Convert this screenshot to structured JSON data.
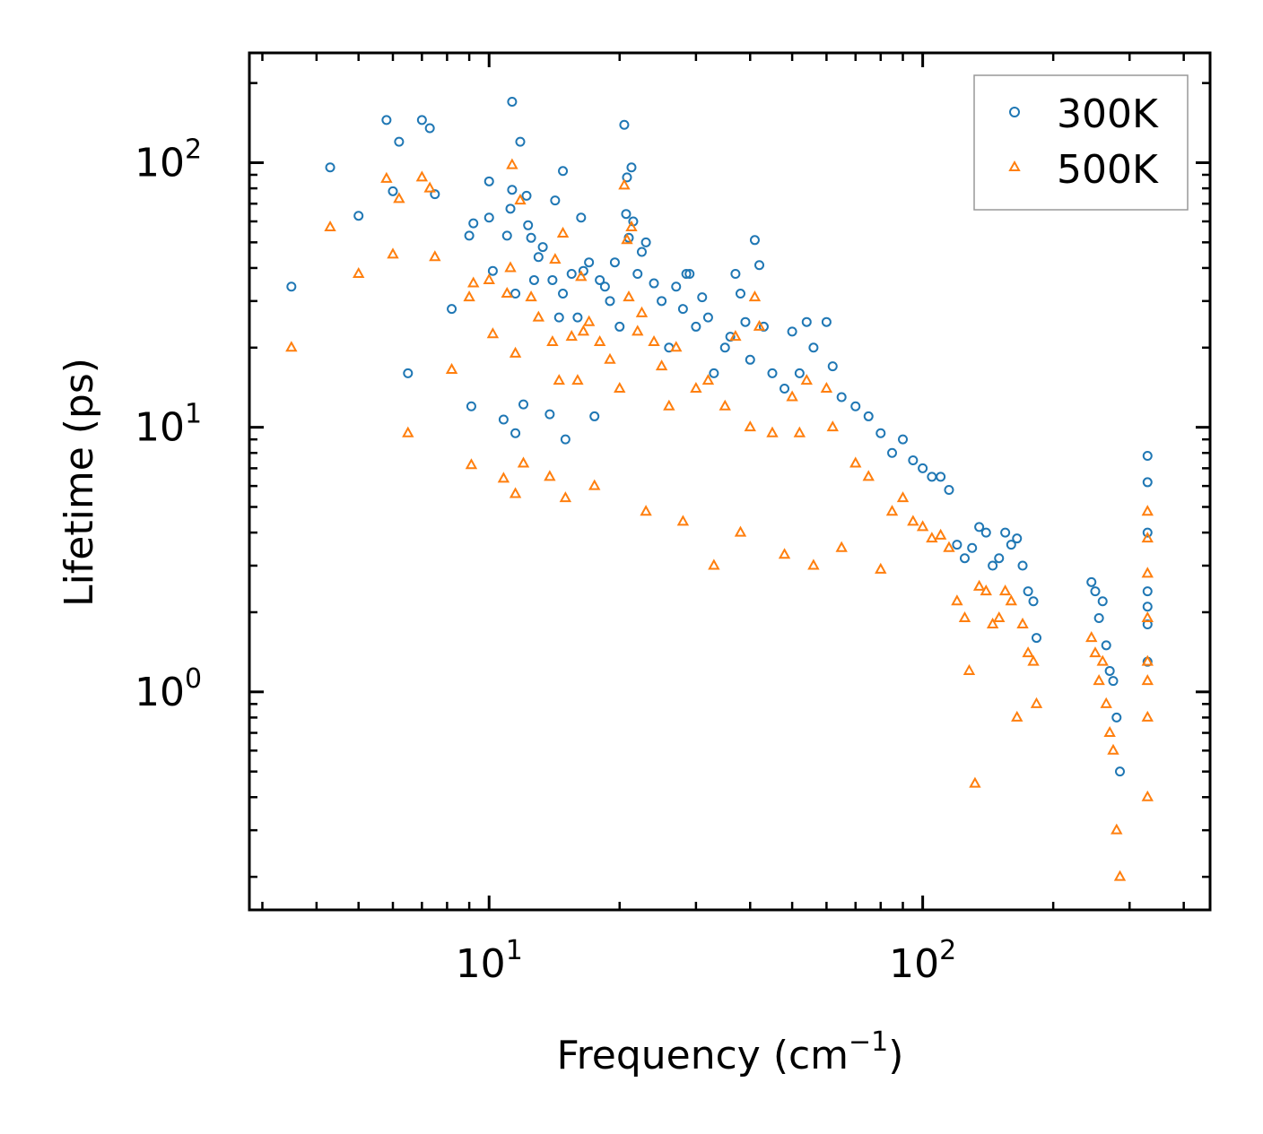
{
  "chart_data": {
    "type": "scatter",
    "xscale": "log",
    "yscale": "log",
    "xlim": [
      2.8,
      460
    ],
    "ylim": [
      0.15,
      260
    ],
    "xlabel": "Frequency (cm",
    "xlabel_sup": "−1",
    "xlabel_end": ")",
    "ylabel": "Lifetime (ps)",
    "xticks": [
      {
        "value": 10,
        "base": "10",
        "exp": "1"
      },
      {
        "value": 100,
        "base": "10",
        "exp": "2"
      }
    ],
    "yticks": [
      {
        "value": 1,
        "base": "10",
        "exp": "0"
      },
      {
        "value": 10,
        "base": "10",
        "exp": "1"
      },
      {
        "value": 100,
        "base": "10",
        "exp": "2"
      }
    ],
    "legend_position": "top-right",
    "series": [
      {
        "name": "300K",
        "marker": "circle",
        "color": "#1f77b4",
        "points": [
          [
            3.5,
            34
          ],
          [
            4.3,
            96
          ],
          [
            5.0,
            63
          ],
          [
            5.8,
            145
          ],
          [
            6.0,
            78
          ],
          [
            6.2,
            120
          ],
          [
            6.5,
            16
          ],
          [
            7.0,
            145
          ],
          [
            7.3,
            135
          ],
          [
            7.5,
            76
          ],
          [
            8.2,
            28
          ],
          [
            9.0,
            53
          ],
          [
            9.1,
            12
          ],
          [
            9.2,
            59
          ],
          [
            10.0,
            62
          ],
          [
            10.0,
            85
          ],
          [
            10.2,
            39
          ],
          [
            10.8,
            10.7
          ],
          [
            11.0,
            53
          ],
          [
            11.2,
            67
          ],
          [
            11.3,
            170
          ],
          [
            11.3,
            79
          ],
          [
            11.5,
            9.5
          ],
          [
            11.5,
            32
          ],
          [
            11.8,
            120
          ],
          [
            12.0,
            12.2
          ],
          [
            12.2,
            75
          ],
          [
            12.3,
            58
          ],
          [
            12.5,
            52
          ],
          [
            12.7,
            36
          ],
          [
            13.0,
            44
          ],
          [
            13.3,
            48
          ],
          [
            13.8,
            11.2
          ],
          [
            14.0,
            36
          ],
          [
            14.2,
            72
          ],
          [
            14.5,
            26
          ],
          [
            14.8,
            93
          ],
          [
            14.8,
            32
          ],
          [
            15.0,
            9
          ],
          [
            15.5,
            38
          ],
          [
            16.0,
            26
          ],
          [
            16.3,
            62
          ],
          [
            16.5,
            39
          ],
          [
            17.0,
            42
          ],
          [
            17.5,
            11
          ],
          [
            18.0,
            36
          ],
          [
            18.5,
            34
          ],
          [
            19.0,
            30
          ],
          [
            19.5,
            42
          ],
          [
            20.0,
            24
          ],
          [
            20.5,
            139
          ],
          [
            20.7,
            64
          ],
          [
            20.8,
            88
          ],
          [
            21.0,
            52
          ],
          [
            21.3,
            96
          ],
          [
            21.5,
            60
          ],
          [
            22.0,
            38
          ],
          [
            22.5,
            46
          ],
          [
            23.0,
            50
          ],
          [
            24.0,
            35
          ],
          [
            25.0,
            30
          ],
          [
            26.0,
            20
          ],
          [
            27.0,
            34
          ],
          [
            28.0,
            28
          ],
          [
            28.5,
            38
          ],
          [
            29.0,
            38
          ],
          [
            30.0,
            24
          ],
          [
            31.0,
            31
          ],
          [
            32.0,
            26
          ],
          [
            33.0,
            16
          ],
          [
            35.0,
            20
          ],
          [
            36.0,
            22
          ],
          [
            37.0,
            38
          ],
          [
            38.0,
            32
          ],
          [
            39.0,
            25
          ],
          [
            40.0,
            18
          ],
          [
            41.0,
            51
          ],
          [
            42.0,
            41
          ],
          [
            43.0,
            24
          ],
          [
            45.0,
            16
          ],
          [
            48.0,
            14
          ],
          [
            50.0,
            23
          ],
          [
            52.0,
            16
          ],
          [
            54.0,
            25
          ],
          [
            56.0,
            20
          ],
          [
            60.0,
            25
          ],
          [
            62.0,
            17
          ],
          [
            65.0,
            13
          ],
          [
            70.0,
            12
          ],
          [
            75.0,
            11
          ],
          [
            80.0,
            9.5
          ],
          [
            85.0,
            8
          ],
          [
            90.0,
            9
          ],
          [
            95.0,
            7.5
          ],
          [
            100.0,
            7
          ],
          [
            105.0,
            6.5
          ],
          [
            110.0,
            6.5
          ],
          [
            115.0,
            5.8
          ],
          [
            120.0,
            3.6
          ],
          [
            125.0,
            3.2
          ],
          [
            130.0,
            3.5
          ],
          [
            135.0,
            4.2
          ],
          [
            140.0,
            4.0
          ],
          [
            145.0,
            3.0
          ],
          [
            150.0,
            3.2
          ],
          [
            155.0,
            4.0
          ],
          [
            160.0,
            3.6
          ],
          [
            165.0,
            3.8
          ],
          [
            170.0,
            3.0
          ],
          [
            175.0,
            2.4
          ],
          [
            180.0,
            2.2
          ],
          [
            183.0,
            1.6
          ],
          [
            245.0,
            2.6
          ],
          [
            250.0,
            2.4
          ],
          [
            255.0,
            1.9
          ],
          [
            260.0,
            2.2
          ],
          [
            265.0,
            1.5
          ],
          [
            270.0,
            1.2
          ],
          [
            275.0,
            1.1
          ],
          [
            280.0,
            0.8
          ],
          [
            285.0,
            0.5
          ],
          [
            330.0,
            7.8
          ],
          [
            330.0,
            6.2
          ],
          [
            330.0,
            4.0
          ],
          [
            330.0,
            2.4
          ],
          [
            330.0,
            2.1
          ],
          [
            330.0,
            1.8
          ],
          [
            330.0,
            1.3
          ]
        ]
      },
      {
        "name": "500K",
        "marker": "triangle",
        "color": "#ff7f0e",
        "points": [
          [
            3.5,
            20
          ],
          [
            4.3,
            57
          ],
          [
            5.0,
            38
          ],
          [
            5.8,
            87
          ],
          [
            6.0,
            45
          ],
          [
            6.2,
            73
          ],
          [
            6.5,
            9.5
          ],
          [
            7.0,
            88
          ],
          [
            7.3,
            80
          ],
          [
            7.5,
            44
          ],
          [
            8.2,
            16.5
          ],
          [
            9.0,
            31
          ],
          [
            9.1,
            7.2
          ],
          [
            9.2,
            35
          ],
          [
            10.0,
            36
          ],
          [
            10.2,
            22.5
          ],
          [
            10.8,
            6.4
          ],
          [
            11.0,
            32
          ],
          [
            11.2,
            40
          ],
          [
            11.3,
            98
          ],
          [
            11.5,
            5.6
          ],
          [
            11.5,
            19
          ],
          [
            11.8,
            72
          ],
          [
            12.0,
            7.3
          ],
          [
            12.5,
            31
          ],
          [
            13.0,
            26
          ],
          [
            13.8,
            6.5
          ],
          [
            14.0,
            21
          ],
          [
            14.2,
            43
          ],
          [
            14.5,
            15
          ],
          [
            14.8,
            54
          ],
          [
            15.0,
            5.4
          ],
          [
            15.5,
            22
          ],
          [
            16.0,
            15
          ],
          [
            16.3,
            37
          ],
          [
            16.5,
            23
          ],
          [
            17.0,
            25
          ],
          [
            17.5,
            6.0
          ],
          [
            18.0,
            21
          ],
          [
            19.0,
            18
          ],
          [
            20.0,
            14
          ],
          [
            20.5,
            82
          ],
          [
            20.8,
            51
          ],
          [
            21.0,
            31
          ],
          [
            21.3,
            57
          ],
          [
            22.0,
            23
          ],
          [
            22.5,
            27
          ],
          [
            23.0,
            4.8
          ],
          [
            24.0,
            21
          ],
          [
            25.0,
            17
          ],
          [
            26.0,
            12
          ],
          [
            27.0,
            20
          ],
          [
            28.0,
            4.4
          ],
          [
            30.0,
            14
          ],
          [
            32.0,
            15
          ],
          [
            33.0,
            3.0
          ],
          [
            35.0,
            12
          ],
          [
            37.0,
            22
          ],
          [
            38.0,
            4.0
          ],
          [
            40.0,
            10
          ],
          [
            41.0,
            31
          ],
          [
            42.0,
            24
          ],
          [
            45.0,
            9.5
          ],
          [
            48.0,
            3.3
          ],
          [
            50.0,
            13
          ],
          [
            52.0,
            9.5
          ],
          [
            54.0,
            15
          ],
          [
            56.0,
            3.0
          ],
          [
            60.0,
            14
          ],
          [
            62.0,
            10
          ],
          [
            65.0,
            3.5
          ],
          [
            70.0,
            7.3
          ],
          [
            75.0,
            6.5
          ],
          [
            80.0,
            2.9
          ],
          [
            85.0,
            4.8
          ],
          [
            90.0,
            5.4
          ],
          [
            95.0,
            4.4
          ],
          [
            100.0,
            4.2
          ],
          [
            105.0,
            3.8
          ],
          [
            110.0,
            3.9
          ],
          [
            115.0,
            3.5
          ],
          [
            120.0,
            2.2
          ],
          [
            125.0,
            1.9
          ],
          [
            128.0,
            1.2
          ],
          [
            132.0,
            0.45
          ],
          [
            135.0,
            2.5
          ],
          [
            140.0,
            2.4
          ],
          [
            145.0,
            1.8
          ],
          [
            150.0,
            1.9
          ],
          [
            155.0,
            2.4
          ],
          [
            160.0,
            2.2
          ],
          [
            165.0,
            0.8
          ],
          [
            170.0,
            1.8
          ],
          [
            175.0,
            1.4
          ],
          [
            180.0,
            1.3
          ],
          [
            183.0,
            0.9
          ],
          [
            245.0,
            1.6
          ],
          [
            250.0,
            1.4
          ],
          [
            255.0,
            1.1
          ],
          [
            260.0,
            1.3
          ],
          [
            265.0,
            0.9
          ],
          [
            270.0,
            0.7
          ],
          [
            275.0,
            0.6
          ],
          [
            280.0,
            0.3
          ],
          [
            285.0,
            0.2
          ],
          [
            330.0,
            4.8
          ],
          [
            330.0,
            3.8
          ],
          [
            330.0,
            2.8
          ],
          [
            330.0,
            1.9
          ],
          [
            330.0,
            1.3
          ],
          [
            330.0,
            1.1
          ],
          [
            330.0,
            0.8
          ],
          [
            330.0,
            0.4
          ]
        ]
      }
    ]
  }
}
